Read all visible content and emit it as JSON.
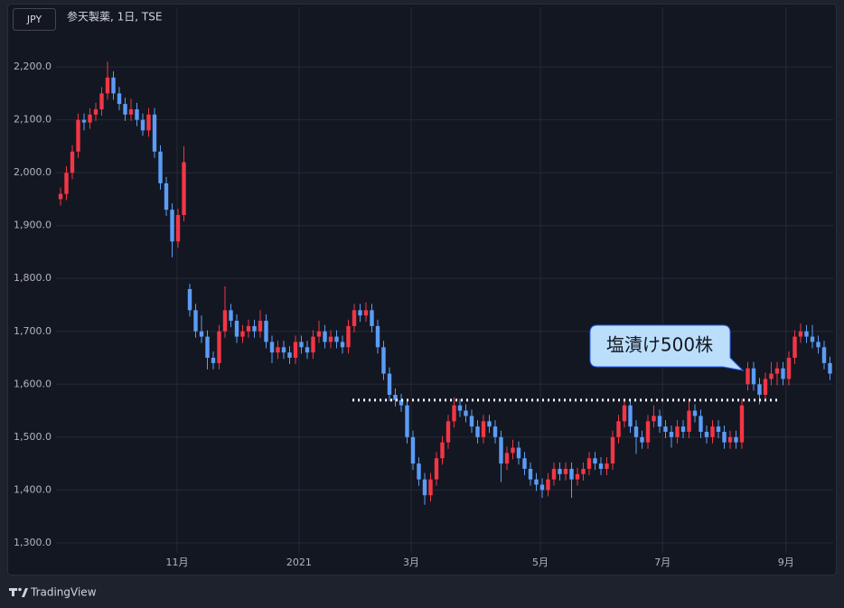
{
  "chart_data": {
    "type": "candlestick",
    "currency_button": "JPY",
    "title": "参天製薬, 1日, TSE",
    "brand": "TradingView",
    "annotation": "塩漬け500株",
    "up_color": "#f23645",
    "down_color": "#5b9cf6",
    "grid": true,
    "ylim": [
      1281,
      2313
    ],
    "yticks": [
      {
        "value": 1300,
        "label": "1,300.0"
      },
      {
        "value": 1400,
        "label": "1,400.0"
      },
      {
        "value": 1500,
        "label": "1,500.0"
      },
      {
        "value": 1600,
        "label": "1,600.0"
      },
      {
        "value": 1700,
        "label": "1,700.0"
      },
      {
        "value": 1800,
        "label": "1,800.0"
      },
      {
        "value": 1900,
        "label": "1,900.0"
      },
      {
        "value": 2000,
        "label": "2,000.0"
      },
      {
        "value": 2100,
        "label": "2,100.0"
      },
      {
        "value": 2200,
        "label": "2,200.0"
      }
    ],
    "xlim": [
      -1,
      132
    ],
    "xticks": [
      {
        "value": 19.85,
        "label": "11月"
      },
      {
        "value": 40.6,
        "label": "2021"
      },
      {
        "value": 59.7,
        "label": "3月"
      },
      {
        "value": 81.7,
        "label": "5月"
      },
      {
        "value": 102.5,
        "label": "7月"
      },
      {
        "value": 123.5,
        "label": "9月"
      }
    ],
    "hline": {
      "value": 1570,
      "from": 49.7,
      "to": 122
    },
    "ohlc": [
      [
        1950,
        1972,
        1938,
        1960
      ],
      [
        1960,
        2012,
        1948,
        2000
      ],
      [
        2000,
        2052,
        1988,
        2040
      ],
      [
        2040,
        2112,
        2028,
        2100
      ],
      [
        2100,
        2112,
        2080,
        2095
      ],
      [
        2095,
        2122,
        2083,
        2110
      ],
      [
        2110,
        2132,
        2098,
        2120
      ],
      [
        2120,
        2162,
        2108,
        2150
      ],
      [
        2150,
        2210,
        2138,
        2180
      ],
      [
        2180,
        2192,
        2138,
        2150
      ],
      [
        2150,
        2162,
        2118,
        2130
      ],
      [
        2130,
        2142,
        2098,
        2110
      ],
      [
        2110,
        2140,
        2098,
        2120
      ],
      [
        2120,
        2132,
        2088,
        2100
      ],
      [
        2100,
        2112,
        2070,
        2080
      ],
      [
        2080,
        2122,
        2068,
        2110
      ],
      [
        2110,
        2122,
        2028,
        2040
      ],
      [
        2040,
        2052,
        1968,
        1980
      ],
      [
        1980,
        1992,
        1918,
        1930
      ],
      [
        1930,
        1942,
        1840,
        1870
      ],
      [
        1870,
        1932,
        1858,
        1920
      ],
      [
        1920,
        2050,
        1908,
        2020
      ],
      [
        1780,
        1790,
        1728,
        1740
      ],
      [
        1740,
        1752,
        1688,
        1700
      ],
      [
        1700,
        1730,
        1678,
        1690
      ],
      [
        1690,
        1702,
        1628,
        1650
      ],
      [
        1650,
        1662,
        1628,
        1640
      ],
      [
        1640,
        1712,
        1628,
        1700
      ],
      [
        1700,
        1785,
        1688,
        1740
      ],
      [
        1740,
        1752,
        1708,
        1720
      ],
      [
        1720,
        1732,
        1678,
        1690
      ],
      [
        1690,
        1712,
        1678,
        1700
      ],
      [
        1700,
        1722,
        1688,
        1710
      ],
      [
        1710,
        1722,
        1688,
        1700
      ],
      [
        1700,
        1740,
        1688,
        1720
      ],
      [
        1720,
        1732,
        1668,
        1680
      ],
      [
        1680,
        1692,
        1640,
        1660
      ],
      [
        1660,
        1682,
        1648,
        1670
      ],
      [
        1670,
        1682,
        1648,
        1660
      ],
      [
        1660,
        1672,
        1638,
        1650
      ],
      [
        1650,
        1692,
        1638,
        1680
      ],
      [
        1680,
        1692,
        1658,
        1670
      ],
      [
        1670,
        1682,
        1648,
        1660
      ],
      [
        1660,
        1702,
        1648,
        1690
      ],
      [
        1690,
        1720,
        1678,
        1700
      ],
      [
        1700,
        1712,
        1668,
        1680
      ],
      [
        1680,
        1702,
        1668,
        1690
      ],
      [
        1690,
        1702,
        1668,
        1680
      ],
      [
        1680,
        1692,
        1658,
        1670
      ],
      [
        1670,
        1722,
        1658,
        1710
      ],
      [
        1710,
        1752,
        1698,
        1740
      ],
      [
        1740,
        1752,
        1718,
        1730
      ],
      [
        1730,
        1755,
        1718,
        1740
      ],
      [
        1740,
        1752,
        1698,
        1710
      ],
      [
        1710,
        1722,
        1658,
        1670
      ],
      [
        1670,
        1682,
        1608,
        1620
      ],
      [
        1620,
        1632,
        1568,
        1580
      ],
      [
        1580,
        1592,
        1558,
        1570
      ],
      [
        1570,
        1582,
        1548,
        1560
      ],
      [
        1560,
        1572,
        1488,
        1500
      ],
      [
        1500,
        1512,
        1438,
        1450
      ],
      [
        1450,
        1462,
        1408,
        1420
      ],
      [
        1420,
        1432,
        1372,
        1390
      ],
      [
        1390,
        1432,
        1378,
        1420
      ],
      [
        1420,
        1472,
        1408,
        1460
      ],
      [
        1460,
        1502,
        1448,
        1490
      ],
      [
        1490,
        1542,
        1478,
        1530
      ],
      [
        1530,
        1575,
        1518,
        1560
      ],
      [
        1560,
        1572,
        1538,
        1550
      ],
      [
        1550,
        1562,
        1528,
        1540
      ],
      [
        1540,
        1552,
        1508,
        1520
      ],
      [
        1520,
        1532,
        1488,
        1500
      ],
      [
        1500,
        1542,
        1488,
        1530
      ],
      [
        1530,
        1542,
        1508,
        1520
      ],
      [
        1520,
        1532,
        1488,
        1500
      ],
      [
        1500,
        1512,
        1415,
        1450
      ],
      [
        1450,
        1482,
        1438,
        1470
      ],
      [
        1470,
        1495,
        1458,
        1480
      ],
      [
        1480,
        1492,
        1448,
        1460
      ],
      [
        1460,
        1472,
        1428,
        1440
      ],
      [
        1440,
        1452,
        1408,
        1420
      ],
      [
        1420,
        1432,
        1398,
        1410
      ],
      [
        1410,
        1422,
        1385,
        1400
      ],
      [
        1400,
        1432,
        1388,
        1420
      ],
      [
        1420,
        1452,
        1408,
        1440
      ],
      [
        1440,
        1452,
        1418,
        1430
      ],
      [
        1430,
        1452,
        1418,
        1440
      ],
      [
        1440,
        1452,
        1385,
        1420
      ],
      [
        1420,
        1442,
        1408,
        1430
      ],
      [
        1430,
        1452,
        1418,
        1440
      ],
      [
        1440,
        1472,
        1428,
        1460
      ],
      [
        1460,
        1472,
        1438,
        1450
      ],
      [
        1450,
        1462,
        1428,
        1440
      ],
      [
        1440,
        1462,
        1428,
        1450
      ],
      [
        1450,
        1512,
        1438,
        1500
      ],
      [
        1500,
        1542,
        1488,
        1530
      ],
      [
        1530,
        1572,
        1518,
        1560
      ],
      [
        1560,
        1572,
        1508,
        1520
      ],
      [
        1520,
        1532,
        1468,
        1500
      ],
      [
        1500,
        1512,
        1478,
        1490
      ],
      [
        1490,
        1542,
        1478,
        1530
      ],
      [
        1530,
        1560,
        1518,
        1540
      ],
      [
        1540,
        1552,
        1508,
        1520
      ],
      [
        1520,
        1532,
        1498,
        1510
      ],
      [
        1510,
        1522,
        1480,
        1500
      ],
      [
        1500,
        1532,
        1488,
        1520
      ],
      [
        1520,
        1532,
        1498,
        1510
      ],
      [
        1510,
        1572,
        1498,
        1550
      ],
      [
        1550,
        1562,
        1528,
        1540
      ],
      [
        1540,
        1552,
        1498,
        1510
      ],
      [
        1510,
        1522,
        1488,
        1500
      ],
      [
        1500,
        1532,
        1488,
        1520
      ],
      [
        1520,
        1532,
        1498,
        1510
      ],
      [
        1510,
        1522,
        1478,
        1490
      ],
      [
        1490,
        1512,
        1478,
        1500
      ],
      [
        1500,
        1512,
        1478,
        1490
      ],
      [
        1490,
        1572,
        1478,
        1560
      ],
      [
        1600,
        1642,
        1588,
        1630
      ],
      [
        1630,
        1642,
        1588,
        1600
      ],
      [
        1600,
        1612,
        1562,
        1580
      ],
      [
        1580,
        1622,
        1568,
        1610
      ],
      [
        1610,
        1642,
        1598,
        1620
      ],
      [
        1620,
        1642,
        1598,
        1630
      ],
      [
        1630,
        1642,
        1598,
        1610
      ],
      [
        1610,
        1662,
        1598,
        1650
      ],
      [
        1650,
        1702,
        1638,
        1690
      ],
      [
        1690,
        1715,
        1678,
        1700
      ],
      [
        1700,
        1712,
        1678,
        1690
      ],
      [
        1690,
        1712,
        1668,
        1680
      ],
      [
        1680,
        1692,
        1658,
        1670
      ],
      [
        1670,
        1682,
        1628,
        1640
      ],
      [
        1640,
        1652,
        1608,
        1620
      ]
    ]
  }
}
